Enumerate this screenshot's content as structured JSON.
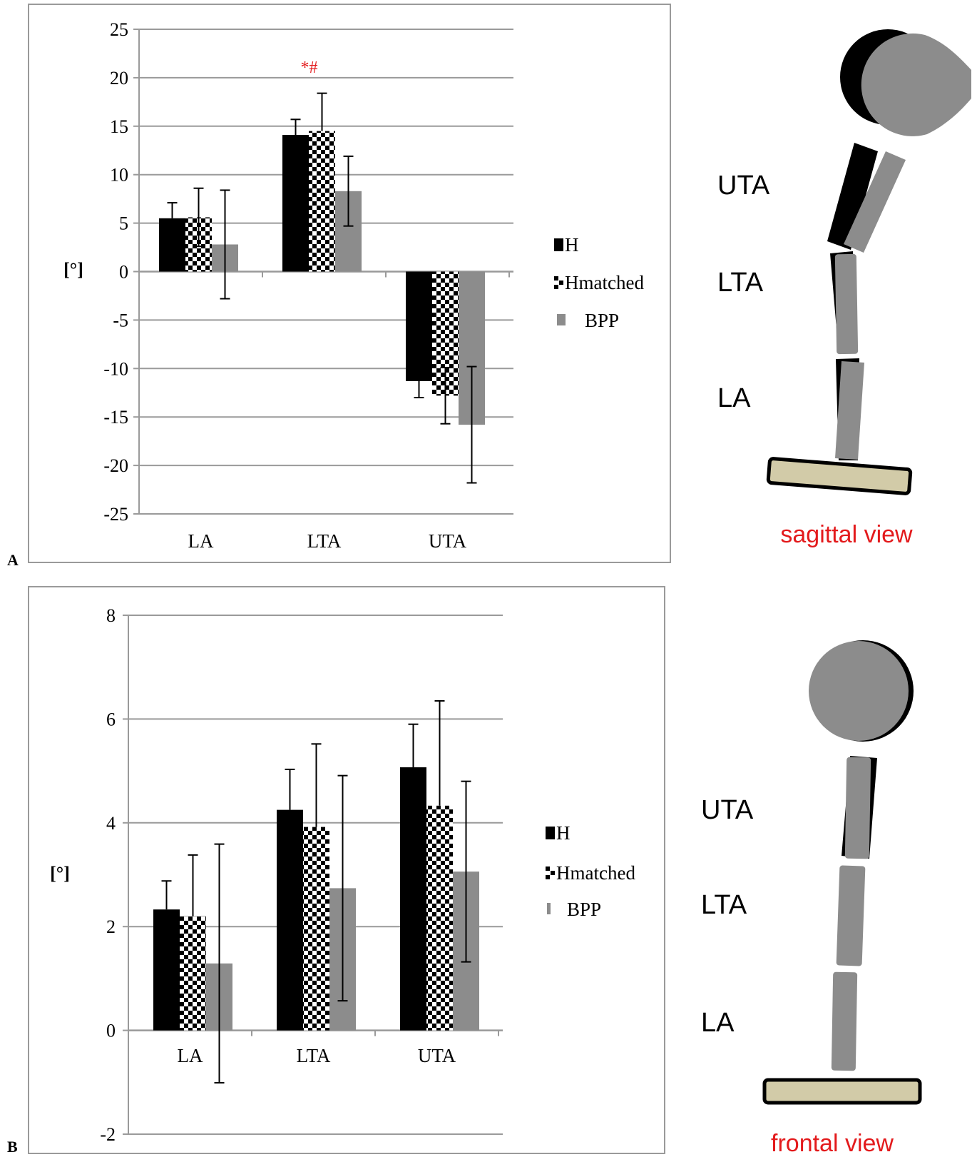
{
  "colors": {
    "H": "#000000",
    "BPP": "#8c8c8c",
    "annotation": "#e31a1c",
    "grid": "#9a9a9a",
    "frame": "#9a9a9a",
    "foot": "#d2cba8",
    "view_label": "#e31a1c"
  },
  "legend_entries": [
    "H",
    "Hmatched",
    "BPP"
  ],
  "chart_data": [
    {
      "type": "bar",
      "panel_label": "A",
      "ylabel": "[°]",
      "ylim": [
        -25,
        25
      ],
      "yticks": [
        "25",
        "20",
        "15",
        "10",
        "5",
        "0",
        "-5",
        "-10",
        "-15",
        "-20",
        "-25"
      ],
      "categories": [
        "LA",
        "LTA",
        "UTA"
      ],
      "series": [
        {
          "name": "H",
          "pattern": "solid-black",
          "values": [
            5.5,
            14.1,
            -11.3
          ],
          "err_upper": [
            1.6,
            1.6,
            1.7
          ],
          "err_lower": [
            0,
            0,
            1.7
          ]
        },
        {
          "name": "Hmatched",
          "pattern": "checkerboard",
          "values": [
            5.6,
            14.5,
            -12.8
          ],
          "err_upper": [
            3.0,
            3.9,
            2.9
          ],
          "err_lower": [
            3.0,
            0,
            2.9
          ]
        },
        {
          "name": "BPP",
          "pattern": "solid-gray",
          "values": [
            2.8,
            8.3,
            -15.8
          ],
          "err_upper": [
            5.6,
            3.6,
            6.0
          ],
          "err_lower": [
            5.6,
            3.6,
            6.0
          ]
        }
      ],
      "annotations": [
        {
          "category": "LTA",
          "text": "*#"
        }
      ],
      "grid": true,
      "legend": "right"
    },
    {
      "type": "bar",
      "panel_label": "B",
      "ylabel": "[°]",
      "ylim": [
        -2,
        8
      ],
      "yticks": [
        "8",
        "6",
        "4",
        "2",
        "0",
        "-2"
      ],
      "categories": [
        "LA",
        "LTA",
        "UTA"
      ],
      "series": [
        {
          "name": "H",
          "pattern": "solid-black",
          "values": [
            2.33,
            4.25,
            5.07
          ],
          "err_upper": [
            0.55,
            0.78,
            0.83
          ],
          "err_lower": [
            0,
            0,
            0
          ]
        },
        {
          "name": "Hmatched",
          "pattern": "checkerboard",
          "values": [
            2.2,
            3.92,
            4.33
          ],
          "err_upper": [
            1.18,
            1.6,
            2.02
          ],
          "err_lower": [
            0,
            0,
            0
          ]
        },
        {
          "name": "BPP",
          "pattern": "solid-gray",
          "values": [
            1.29,
            2.74,
            3.06
          ],
          "err_upper": [
            2.3,
            2.17,
            1.74
          ],
          "err_lower": [
            2.3,
            2.17,
            1.74
          ]
        }
      ],
      "grid": true,
      "legend": "right"
    }
  ],
  "diagrams": [
    {
      "segment_labels": [
        "UTA",
        "LTA",
        "LA"
      ],
      "view_label": "sagittal view"
    },
    {
      "segment_labels": [
        "UTA",
        "LTA",
        "LA"
      ],
      "view_label": "frontal view"
    }
  ]
}
